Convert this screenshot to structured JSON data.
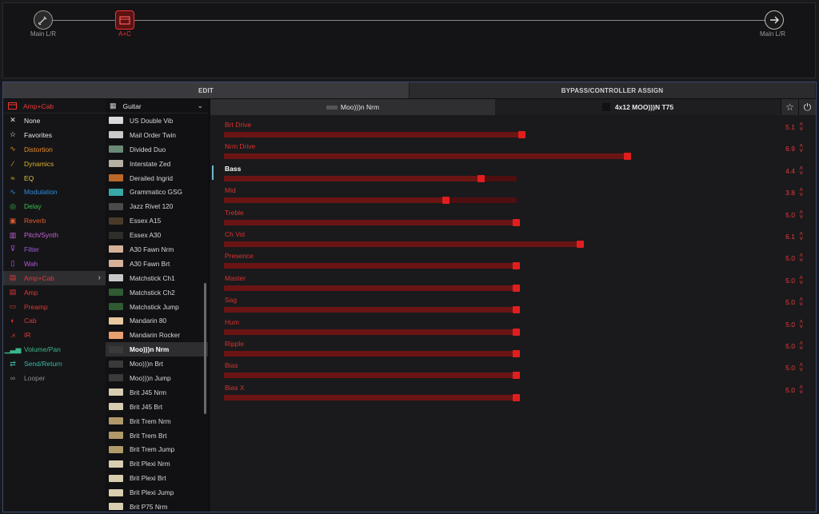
{
  "signal_path": {
    "input_label": "Main L/R",
    "amp_label": "A+C",
    "output_label": "Main L/R"
  },
  "tabs": [
    "EDIT",
    "BYPASS/CONTROLLER ASSIGN"
  ],
  "categories": {
    "header": "Amp+Cab",
    "items": [
      {
        "label": "None",
        "color": "#e6e6e6",
        "icon": "x-icon"
      },
      {
        "label": "Favorites",
        "color": "#e6e6e6",
        "icon": "star-icon"
      },
      {
        "label": "Distortion",
        "color": "#e3892a",
        "icon": "distortion-icon"
      },
      {
        "label": "Dynamics",
        "color": "#d7b12a",
        "icon": "dynamics-icon"
      },
      {
        "label": "EQ",
        "color": "#e0c53a",
        "icon": "eq-icon"
      },
      {
        "label": "Modulation",
        "color": "#2f8fe0",
        "icon": "modulation-icon"
      },
      {
        "label": "Delay",
        "color": "#35c24a",
        "icon": "delay-icon"
      },
      {
        "label": "Reverb",
        "color": "#e35a2a",
        "icon": "reverb-icon"
      },
      {
        "label": "Pitch/Synth",
        "color": "#c463d8",
        "icon": "pitch-icon"
      },
      {
        "label": "Filter",
        "color": "#9b5ad8",
        "icon": "filter-icon"
      },
      {
        "label": "Wah",
        "color": "#b45ad8",
        "icon": "wah-icon"
      },
      {
        "label": "Amp+Cab",
        "color": "#e33838",
        "icon": "ampcab-icon",
        "selected": true
      },
      {
        "label": "Amp",
        "color": "#e33838",
        "icon": "amp-icon"
      },
      {
        "label": "Preamp",
        "color": "#e33838",
        "icon": "preamp-icon"
      },
      {
        "label": "Cab",
        "color": "#e33838",
        "icon": "cab-icon"
      },
      {
        "label": "IR",
        "color": "#e33838",
        "icon": "ir-icon"
      },
      {
        "label": "Volume/Pan",
        "color": "#3ab78a",
        "icon": "volume-icon"
      },
      {
        "label": "Send/Return",
        "color": "#3ab7a8",
        "icon": "send-icon"
      },
      {
        "label": "Looper",
        "color": "#8a8a8a",
        "icon": "looper-icon"
      }
    ]
  },
  "models": {
    "header": "Guitar",
    "items": [
      {
        "label": "US Double Vib",
        "thumb": "#d9d9d9"
      },
      {
        "label": "Mail Order Twin",
        "thumb": "#c9c9c9"
      },
      {
        "label": "Divided Duo",
        "thumb": "#6a8a76"
      },
      {
        "label": "Interstate Zed",
        "thumb": "#b5b0a3"
      },
      {
        "label": "Derailed Ingrid",
        "thumb": "#b9682a"
      },
      {
        "label": "Grammatico GSG",
        "thumb": "#3aa7a8"
      },
      {
        "label": "Jazz Rivet 120",
        "thumb": "#4a4a4a"
      },
      {
        "label": "Essex A15",
        "thumb": "#4a3a2a"
      },
      {
        "label": "Essex A30",
        "thumb": "#2e2e2a"
      },
      {
        "label": "A30 Fawn Nrm",
        "thumb": "#d7b09a"
      },
      {
        "label": "A30 Fawn Brt",
        "thumb": "#d7b09a"
      },
      {
        "label": "Matchstick Ch1",
        "thumb": "#c8c8c8"
      },
      {
        "label": "Matchstick Ch2",
        "thumb": "#2f5a32"
      },
      {
        "label": "Matchstick Jump",
        "thumb": "#2f5a32"
      },
      {
        "label": "Mandarin 80",
        "thumb": "#e8c8a0"
      },
      {
        "label": "Mandarin Rocker",
        "thumb": "#e8a070"
      },
      {
        "label": "Moo)))n Nrm",
        "thumb": "#3a3a3a",
        "selected": true
      },
      {
        "label": "Moo)))n Brt",
        "thumb": "#3a3a3a"
      },
      {
        "label": "Moo)))n Jump",
        "thumb": "#3a3a3a"
      },
      {
        "label": "Brit J45 Nrm",
        "thumb": "#d8cdb0"
      },
      {
        "label": "Brit J45 Brt",
        "thumb": "#d8cdb0"
      },
      {
        "label": "Brit Trem Nrm",
        "thumb": "#b09a6a"
      },
      {
        "label": "Brit Trem Brt",
        "thumb": "#b09a6a"
      },
      {
        "label": "Brit Trem Jump",
        "thumb": "#b09a6a"
      },
      {
        "label": "Brit Plexi Nrm",
        "thumb": "#d8cdb0"
      },
      {
        "label": "Brit Plexi Brt",
        "thumb": "#d8cdb0"
      },
      {
        "label": "Brit Plexi Jump",
        "thumb": "#d8cdb0"
      },
      {
        "label": "Brit P75 Nrm",
        "thumb": "#d8cdb0"
      }
    ]
  },
  "params_header": {
    "amp_model": "Moo)))n Nrm",
    "cab_model": "4x12 MOO)))N T75"
  },
  "params": [
    {
      "label": "Brt Drive",
      "value": "5.1",
      "level": 0.51
    },
    {
      "label": "Nrm Drive",
      "value": "6.9",
      "level": 0.69
    },
    {
      "label": "Bass",
      "value": "4.4",
      "level": 0.44,
      "focused": true
    },
    {
      "label": "Mid",
      "value": "3.8",
      "level": 0.38
    },
    {
      "label": "Treble",
      "value": "5.0",
      "level": 0.5
    },
    {
      "label": "Ch Vol",
      "value": "6.1",
      "level": 0.61
    },
    {
      "label": "Presence",
      "value": "5.0",
      "level": 0.5
    },
    {
      "label": "Master",
      "value": "5.0",
      "level": 0.5
    },
    {
      "label": "Sag",
      "value": "5.0",
      "level": 0.5
    },
    {
      "label": "Hum",
      "value": "5.0",
      "level": 0.5
    },
    {
      "label": "Ripple",
      "value": "5.0",
      "level": 0.5
    },
    {
      "label": "Bias",
      "value": "5.0",
      "level": 0.5
    },
    {
      "label": "Bias X",
      "value": "5.0",
      "level": 0.5
    }
  ]
}
